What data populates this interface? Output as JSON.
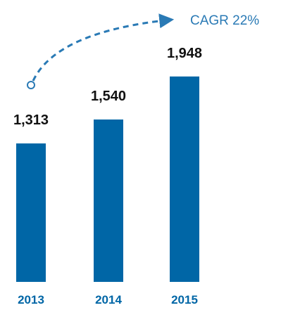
{
  "chart_data": {
    "type": "bar",
    "categories": [
      "2013",
      "2014",
      "2015"
    ],
    "values": [
      1313,
      1540,
      1948
    ],
    "value_labels": [
      "1,313",
      "1,540",
      "1,948"
    ],
    "annotation": "CAGR 22%",
    "title": "",
    "xlabel": "",
    "ylabel": "",
    "grid": false,
    "colors": {
      "bar": "#0066a6",
      "tick": "#0066a6",
      "annotation": "#2a7ab5",
      "value": "#111111"
    }
  }
}
